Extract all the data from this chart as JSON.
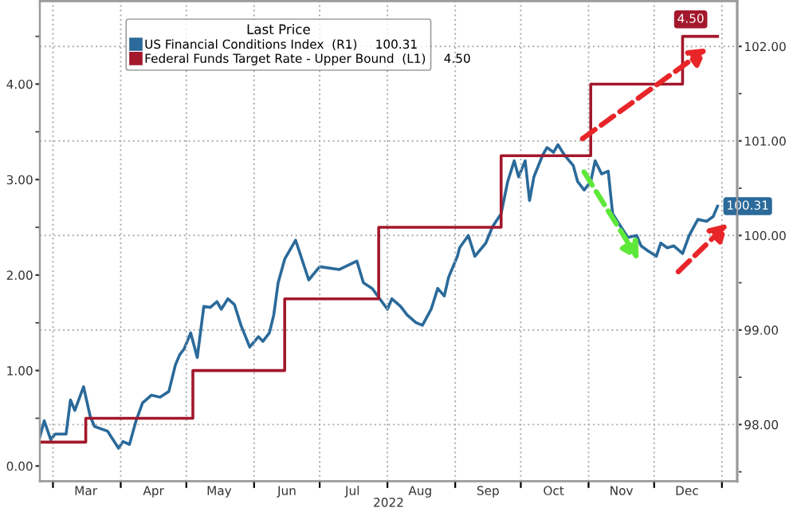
{
  "chart_data": {
    "type": "line",
    "xlabel": "2022",
    "legend_title": "Last Price",
    "legend": "top left",
    "grid": true,
    "xlim": [
      "2022-02-23",
      "2023-01-08"
    ],
    "xticks": [
      {
        "value": "2022-03-01",
        "label": null
      },
      {
        "value": "2022-04-01",
        "label": null
      },
      {
        "value": "2022-05-01",
        "label": null
      },
      {
        "value": "2022-06-01",
        "label": null
      },
      {
        "value": "2022-07-01",
        "label": null
      },
      {
        "value": "2022-08-01",
        "label": null
      },
      {
        "value": "2022-09-01",
        "label": null
      },
      {
        "value": "2022-10-01",
        "label": null
      },
      {
        "value": "2022-11-01",
        "label": null
      },
      {
        "value": "2022-12-01",
        "label": null
      },
      {
        "value": "2023-01-01",
        "label": null
      },
      {
        "value": "2022-03-16",
        "label": "Mar"
      },
      {
        "value": "2022-04-16",
        "label": "Apr"
      },
      {
        "value": "2022-05-16",
        "label": "May"
      },
      {
        "value": "2022-06-16",
        "label": "Jun"
      },
      {
        "value": "2022-07-16",
        "label": "Jul"
      },
      {
        "value": "2022-08-16",
        "label": "Aug"
      },
      {
        "value": "2022-09-16",
        "label": "Sep"
      },
      {
        "value": "2022-10-16",
        "label": "Oct"
      },
      {
        "value": "2022-11-16",
        "label": "Nov"
      },
      {
        "value": "2022-12-16",
        "label": "Dec"
      }
    ],
    "ylim": [
      -0.16,
      4.87
    ],
    "yticks": [
      {
        "value": 0,
        "label": "0.00"
      },
      {
        "value": 0.5,
        "label": null
      },
      {
        "value": 1,
        "label": "1.00"
      },
      {
        "value": 1.5,
        "label": null
      },
      {
        "value": 2,
        "label": "2.00"
      },
      {
        "value": 2.5,
        "label": null
      },
      {
        "value": 3,
        "label": "3.00"
      },
      {
        "value": 3.5,
        "label": null
      },
      {
        "value": 4,
        "label": "4.00"
      },
      {
        "value": 4.5,
        "label": null
      }
    ],
    "y2lim": [
      97.4,
      102.48
    ],
    "y2ticks": [
      {
        "value": 97.5,
        "label": null
      },
      {
        "value": 98,
        "label": "98.00"
      },
      {
        "value": 98.5,
        "label": null
      },
      {
        "value": 99,
        "label": "99.00"
      },
      {
        "value": 99.5,
        "label": null
      },
      {
        "value": 100,
        "label": "100.00"
      },
      {
        "value": 100.5,
        "label": null
      },
      {
        "value": 101,
        "label": "101.00"
      },
      {
        "value": 101.5,
        "label": null
      },
      {
        "value": 102,
        "label": "102.00"
      }
    ],
    "series": [
      {
        "name": "US Financial Conditions Index  (R1)",
        "color": "#2b6a9a",
        "axis": "y2",
        "x": [
          "2022-02-23",
          "2022-02-25",
          "2022-02-28",
          "2022-03-02",
          "2022-03-07",
          "2022-03-09",
          "2022-03-11",
          "2022-03-15",
          "2022-03-18",
          "2022-03-20",
          "2022-03-26",
          "2022-03-31",
          "2022-04-02",
          "2022-04-05",
          "2022-04-08",
          "2022-04-11",
          "2022-04-15",
          "2022-04-19",
          "2022-04-23",
          "2022-04-26",
          "2022-04-28",
          "2022-04-30",
          "2022-05-03",
          "2022-05-06",
          "2022-05-09",
          "2022-05-12",
          "2022-05-15",
          "2022-05-17",
          "2022-05-20",
          "2022-05-23",
          "2022-05-26",
          "2022-05-30",
          "2022-06-03",
          "2022-06-05",
          "2022-06-08",
          "2022-06-10",
          "2022-06-12",
          "2022-06-15",
          "2022-06-20",
          "2022-06-26",
          "2022-07-01",
          "2022-07-10",
          "2022-07-18",
          "2022-07-21",
          "2022-07-25",
          "2022-08-01",
          "2022-08-03",
          "2022-08-07",
          "2022-08-10",
          "2022-08-14",
          "2022-08-17",
          "2022-08-21",
          "2022-08-24",
          "2022-08-27",
          "2022-08-29",
          "2022-09-02",
          "2022-09-03",
          "2022-09-07",
          "2022-09-10",
          "2022-09-15",
          "2022-09-18",
          "2022-09-22",
          "2022-09-25",
          "2022-09-28",
          "2022-09-30",
          "2022-10-03",
          "2022-10-05",
          "2022-10-07",
          "2022-10-11",
          "2022-10-13",
          "2022-10-16",
          "2022-10-18",
          "2022-10-21",
          "2022-10-25",
          "2022-10-27",
          "2022-10-30",
          "2022-11-02",
          "2022-11-04",
          "2022-11-07",
          "2022-11-10",
          "2022-11-12",
          "2022-11-15",
          "2022-11-19",
          "2022-11-23",
          "2022-11-25",
          "2022-11-28",
          "2022-12-02",
          "2022-12-04",
          "2022-12-07",
          "2022-12-10",
          "2022-12-14",
          "2022-12-17",
          "2022-12-21",
          "2022-12-25",
          "2022-12-28",
          "2022-12-30"
        ],
        "values": [
          97.87,
          98.04,
          97.84,
          97.9,
          97.9,
          98.26,
          98.15,
          98.4,
          98.09,
          97.98,
          97.93,
          97.75,
          97.82,
          97.79,
          98.04,
          98.23,
          98.31,
          98.29,
          98.35,
          98.63,
          98.74,
          98.8,
          98.97,
          98.71,
          99.25,
          99.24,
          99.3,
          99.22,
          99.33,
          99.27,
          99.05,
          98.82,
          98.93,
          98.88,
          98.97,
          99.16,
          99.5,
          99.75,
          99.95,
          99.53,
          99.67,
          99.64,
          99.73,
          99.5,
          99.44,
          99.22,
          99.33,
          99.25,
          99.16,
          99.08,
          99.05,
          99.22,
          99.44,
          99.36,
          99.56,
          99.78,
          99.87,
          100.0,
          99.78,
          99.92,
          100.09,
          100.23,
          100.57,
          100.79,
          100.62,
          100.79,
          100.37,
          100.62,
          100.85,
          100.93,
          100.88,
          100.96,
          100.85,
          100.74,
          100.57,
          100.48,
          100.57,
          100.79,
          100.65,
          100.68,
          100.23,
          100.12,
          99.98,
          100.0,
          99.89,
          99.84,
          99.78,
          99.92,
          99.87,
          99.89,
          99.81,
          100.0,
          100.17,
          100.15,
          100.2,
          100.31
        ],
        "value_labels": [
          null,
          null,
          null,
          null,
          null,
          null,
          null,
          null,
          null,
          null,
          null,
          null,
          null,
          null,
          null,
          null,
          null,
          null,
          null,
          null,
          null,
          null,
          null,
          null,
          null,
          null,
          null,
          null,
          null,
          null,
          null,
          null,
          null,
          null,
          null,
          null,
          null,
          null,
          null,
          null,
          null,
          null,
          null,
          null,
          null,
          null,
          null,
          null,
          null,
          null,
          null,
          null,
          null,
          null,
          null,
          null,
          null,
          null,
          null,
          null,
          null,
          null,
          null,
          null,
          null,
          null,
          null,
          null,
          null,
          null,
          null,
          null,
          null,
          null,
          null,
          null,
          null,
          null,
          null,
          null,
          null,
          null,
          null,
          null,
          null,
          null,
          null,
          null,
          null,
          null,
          null,
          null,
          null,
          null,
          null,
          "100.31"
        ]
      },
      {
        "name": "Federal Funds Target Rate - Upper Bound  (L1)",
        "color": "#a3182c",
        "type": "step",
        "x": [
          "2022-02-23",
          "2022-03-16",
          "2022-05-04",
          "2022-06-15",
          "2022-07-28",
          "2022-09-22",
          "2022-11-02",
          "2022-12-14",
          "2022-12-30"
        ],
        "values": [
          0.25,
          0.5,
          1.0,
          1.75,
          2.5,
          3.25,
          4.0,
          4.5,
          4.5
        ],
        "value_labels": [
          null,
          null,
          null,
          null,
          null,
          null,
          null,
          null,
          "4.50"
        ]
      }
    ]
  }
}
